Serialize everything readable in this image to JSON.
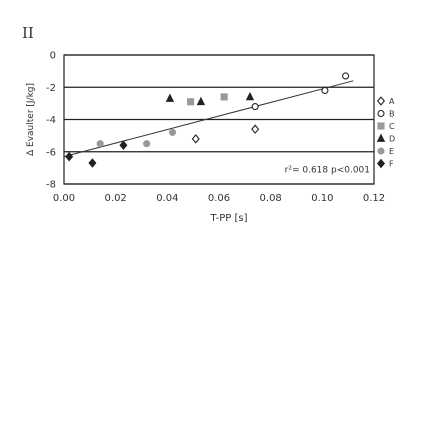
{
  "panel_label": "II",
  "chart_data": {
    "type": "scatter",
    "xlabel": "T-PP [s]",
    "ylabel": "Δ Evaulter [J/kg]",
    "xlim": [
      0,
      0.12
    ],
    "ylim": [
      -8,
      0
    ],
    "x_ticks": [
      "0.00",
      "0.02",
      "0.04",
      "0.06",
      "0.08",
      "0.10",
      "0.12"
    ],
    "y_ticks": [
      "0",
      "-2",
      "-4",
      "-6",
      "-8"
    ],
    "grid": "horizontal",
    "legend_position": "right",
    "annotation": "r²= 0.618  p<0.001",
    "trendline": {
      "x": [
        0.0,
        0.112
      ],
      "y": [
        -6.3,
        -1.6
      ]
    },
    "series": [
      {
        "name": "A",
        "marker": "diamond-open",
        "color": "#222222",
        "points": [
          [
            0.051,
            -5.2
          ],
          [
            0.074,
            -4.6
          ]
        ]
      },
      {
        "name": "B",
        "marker": "circle-open",
        "color": "#222222",
        "points": [
          [
            0.074,
            -3.2
          ],
          [
            0.101,
            -2.2
          ],
          [
            0.109,
            -1.3
          ]
        ]
      },
      {
        "name": "C",
        "marker": "square",
        "color": "#999999",
        "points": [
          [
            0.049,
            -2.9
          ],
          [
            0.062,
            -2.6
          ]
        ]
      },
      {
        "name": "D",
        "marker": "triangle",
        "color": "#222222",
        "points": [
          [
            0.041,
            -2.7
          ],
          [
            0.053,
            -2.9
          ],
          [
            0.072,
            -2.6
          ]
        ]
      },
      {
        "name": "E",
        "marker": "circle",
        "color": "#999999",
        "points": [
          [
            0.014,
            -5.5
          ],
          [
            0.032,
            -5.5
          ],
          [
            0.042,
            -4.8
          ]
        ]
      },
      {
        "name": "F",
        "marker": "diamond",
        "color": "#222222",
        "points": [
          [
            0.002,
            -6.3
          ],
          [
            0.011,
            -6.7
          ],
          [
            0.023,
            -5.6
          ]
        ]
      }
    ]
  }
}
